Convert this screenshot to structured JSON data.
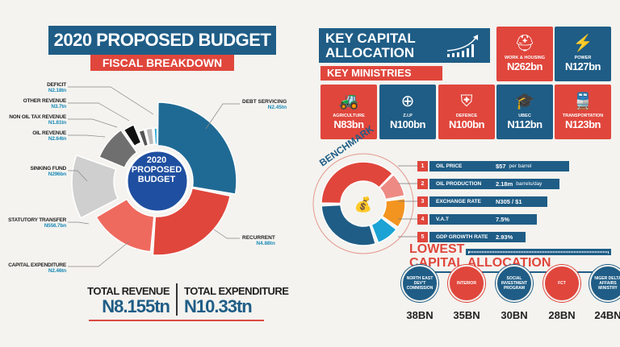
{
  "left": {
    "title": "2020 PROPOSED BUDGET",
    "subtitle": "FISCAL BREAKDOWN",
    "center_label": [
      "2020",
      "PROPOSED",
      "BUDGET"
    ],
    "total_revenue_label": "TOTAL REVENUE",
    "total_revenue_value": "N8.155tn",
    "total_expenditure_label": "TOTAL EXPENDITURE",
    "total_expenditure_value": "N10.33tn"
  },
  "chart_data": [
    {
      "type": "pie",
      "title": "2020 PROPOSED BUDGET",
      "categories": [
        "DEBT SERVICING",
        "RECURRENT",
        "CAPITAL EXPENDITURE",
        "STATUTORY TRANSFER",
        "SINKING FUND",
        "OIL REVENUE",
        "NON OIL TAX REVENUE",
        "OTHER REVENUE",
        "DEFICIT"
      ],
      "value_labels": [
        "N2.45tn",
        "N4.88tn",
        "N2.46tn",
        "N556.7bn",
        "N296bn",
        "N2.64tn",
        "N1.81tn",
        "N3.7tn",
        "N2.18tn"
      ],
      "values_tn": [
        2.45,
        4.88,
        2.46,
        0.5567,
        0.296,
        2.64,
        1.81,
        3.7,
        2.18
      ],
      "colors": [
        "#1f6a94",
        "#e0463c",
        "#ef6a5e",
        "#cfcfcf",
        "#6f6f6f",
        "#111111",
        "#555555",
        "#b9b9b9",
        "#1aa3d4"
      ]
    },
    {
      "type": "table",
      "title": "BENCHMARK",
      "rows": [
        {
          "num": "1",
          "label": "OIL PRICE",
          "value": "$57",
          "unit": "per barrel"
        },
        {
          "num": "2",
          "label": "OIL PRODUCTION",
          "value": "2.18m",
          "unit": "barrels/day"
        },
        {
          "num": "3",
          "label": "EXCHANGE RATE",
          "value": "N305 / $1",
          "unit": ""
        },
        {
          "num": "4",
          "label": "V.A.T",
          "value": "7.5%",
          "unit": ""
        },
        {
          "num": "5",
          "label": "GDP GROWTH RATE",
          "value": "2.93%",
          "unit": ""
        }
      ]
    }
  ],
  "right": {
    "title": "KEY CAPITAL ALLOCATION",
    "subtitle": "KEY MINISTRIES",
    "ministries": [
      {
        "name": "WORK & HOUSING",
        "amount": "N262bn",
        "icon": "worker-icon"
      },
      {
        "name": "POWER",
        "amount": "N127bn",
        "icon": "pylon-icon"
      },
      {
        "name": "AGRICULTURE",
        "amount": "N83bn",
        "icon": "tractor-icon"
      },
      {
        "name": "Z.I.P",
        "amount": "N100bn",
        "icon": "road-icon"
      },
      {
        "name": "DEFENCE",
        "amount": "N100bn",
        "icon": "shield-icon"
      },
      {
        "name": "UBEC",
        "amount": "N112bn",
        "icon": "graduation-cap-icon"
      },
      {
        "name": "TRANSPORTATION",
        "amount": "N123bn",
        "icon": "train-icon"
      }
    ],
    "benchmark_title": "BENCHMARK",
    "lowest_title_1": "LOWEST",
    "lowest_title_2": "CAPITAL ALLOCATION",
    "lowest": [
      {
        "name": "NORTH EAST DEV'T COMMISSION",
        "amount": "38BN",
        "color": "#1f5d86"
      },
      {
        "name": "INTERIOR",
        "amount": "35BN",
        "color": "#e0463c"
      },
      {
        "name": "SOCIAL INVESTMENT PROGRAM",
        "amount": "30BN",
        "color": "#1f5d86"
      },
      {
        "name": "FCT",
        "amount": "28BN",
        "color": "#e0463c"
      },
      {
        "name": "NIGER DELTA AFFAIRS MINISTRY",
        "amount": "24BN",
        "color": "#1f5d86"
      }
    ]
  }
}
